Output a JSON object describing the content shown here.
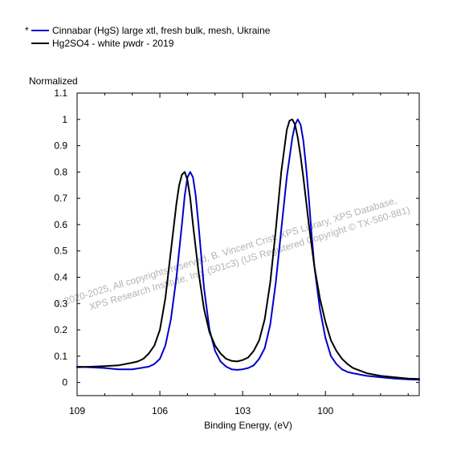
{
  "chart_data": {
    "type": "line",
    "xlabel": "Binding Energy, (eV)",
    "ylabel": "Normalized",
    "xlim": [
      109,
      96.6
    ],
    "ylim": [
      -0.05,
      1.1
    ],
    "x_ticks": [
      109,
      106,
      103,
      100
    ],
    "y_ticks": [
      0,
      0.1,
      0.2,
      0.3,
      0.4,
      0.5,
      0.6,
      0.7,
      0.8,
      0.9,
      1,
      1.1
    ],
    "x_tick_labels": [
      "109",
      "106",
      "103",
      "100"
    ],
    "y_tick_labels": [
      "0",
      "0.1",
      "0.2",
      "0.3",
      "0.4",
      "0.5",
      "0.6",
      "0.7",
      "0.8",
      "0.9",
      "1",
      "1.1"
    ],
    "x_reversed": true,
    "grid": false,
    "legend_position": "top-left",
    "series": [
      {
        "name": "Cinnabar (HgS) large xtl, fresh bulk, mesh, Ukraine",
        "color": "#0000cc",
        "x": [
          109.0,
          108.0,
          107.5,
          107.0,
          106.7,
          106.4,
          106.2,
          106.0,
          105.8,
          105.6,
          105.4,
          105.2,
          105.1,
          105.0,
          104.9,
          104.8,
          104.7,
          104.6,
          104.5,
          104.4,
          104.2,
          104.0,
          103.8,
          103.6,
          103.4,
          103.2,
          103.0,
          102.8,
          102.6,
          102.4,
          102.2,
          102.0,
          101.8,
          101.6,
          101.4,
          101.2,
          101.1,
          101.0,
          100.9,
          100.8,
          100.7,
          100.6,
          100.5,
          100.4,
          100.2,
          100.0,
          99.8,
          99.6,
          99.4,
          99.2,
          99.0,
          98.5,
          98.0,
          97.5,
          97.0,
          96.6
        ],
        "y": [
          0.06,
          0.055,
          0.05,
          0.05,
          0.055,
          0.06,
          0.07,
          0.09,
          0.14,
          0.24,
          0.4,
          0.6,
          0.71,
          0.78,
          0.8,
          0.78,
          0.71,
          0.6,
          0.48,
          0.36,
          0.2,
          0.12,
          0.08,
          0.06,
          0.05,
          0.048,
          0.05,
          0.055,
          0.065,
          0.09,
          0.13,
          0.22,
          0.38,
          0.58,
          0.78,
          0.93,
          0.98,
          1.0,
          0.98,
          0.92,
          0.82,
          0.7,
          0.56,
          0.44,
          0.28,
          0.17,
          0.1,
          0.07,
          0.05,
          0.04,
          0.035,
          0.025,
          0.02,
          0.015,
          0.012,
          0.01
        ]
      },
      {
        "name": "Hg2SO4 - white pwdr - 2019",
        "color": "#000000",
        "x": [
          109.0,
          108.0,
          107.5,
          107.0,
          106.8,
          106.6,
          106.4,
          106.2,
          106.0,
          105.8,
          105.6,
          105.4,
          105.3,
          105.2,
          105.1,
          105.0,
          104.9,
          104.8,
          104.6,
          104.4,
          104.2,
          104.0,
          103.8,
          103.6,
          103.4,
          103.2,
          103.0,
          102.8,
          102.6,
          102.4,
          102.2,
          102.0,
          101.8,
          101.6,
          101.4,
          101.3,
          101.2,
          101.1,
          101.0,
          100.9,
          100.8,
          100.6,
          100.4,
          100.2,
          100.0,
          99.8,
          99.6,
          99.4,
          99.2,
          99.0,
          98.5,
          98.0,
          97.5,
          97.0,
          96.6
        ],
        "y": [
          0.058,
          0.062,
          0.065,
          0.075,
          0.08,
          0.09,
          0.11,
          0.14,
          0.2,
          0.32,
          0.5,
          0.68,
          0.75,
          0.79,
          0.8,
          0.77,
          0.7,
          0.6,
          0.42,
          0.28,
          0.19,
          0.14,
          0.11,
          0.09,
          0.082,
          0.08,
          0.085,
          0.095,
          0.12,
          0.16,
          0.24,
          0.38,
          0.58,
          0.8,
          0.96,
          0.995,
          1.0,
          0.98,
          0.93,
          0.86,
          0.78,
          0.6,
          0.44,
          0.32,
          0.23,
          0.16,
          0.12,
          0.09,
          0.07,
          0.055,
          0.035,
          0.025,
          0.02,
          0.015,
          0.013
        ]
      }
    ],
    "legend_marker": "*",
    "watermark": [
      "© 2020-2025,  All copyrights reserved,   B. Vincent Crist,  XPS Library, XPS Database,",
      "XPS Research Institute, Inc. (501c3)   (US Registered Copyright © TX-560-881)"
    ]
  }
}
